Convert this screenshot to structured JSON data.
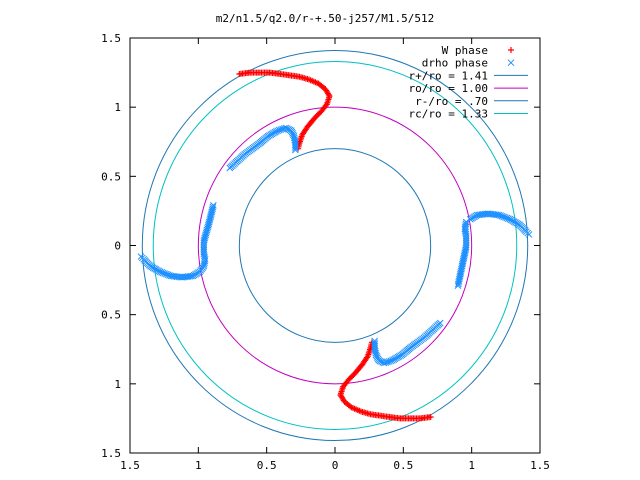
{
  "title": "m2/n1.5/q2.0/r-+.50-j257/M1.5/512",
  "chart_data": {
    "type": "scatter",
    "xlim": [
      -1.5,
      1.5
    ],
    "ylim": [
      -1.5,
      1.5
    ],
    "x_tick_values": [
      -1.5,
      -1,
      -0.5,
      0,
      0.5,
      1,
      1.5
    ],
    "x_tick_labels": [
      "1.5",
      "1",
      "0.5",
      "0",
      "0.5",
      "1",
      "1.5"
    ],
    "y_tick_values": [
      1.5,
      1,
      0.5,
      0,
      -0.5,
      -1,
      -1.5
    ],
    "y_tick_labels": [
      "1.5",
      "1",
      "0.5",
      "0",
      "0.5",
      "1",
      "1.5"
    ],
    "legend_position": "top-right",
    "series": [
      {
        "name": "W phase",
        "marker": "plus",
        "color": "#ff0000",
        "points": [
          [
            -0.7,
            1.24
          ],
          [
            -0.62,
            1.25
          ],
          [
            -0.55,
            1.25
          ],
          [
            -0.48,
            1.25
          ],
          [
            -0.4,
            1.24
          ],
          [
            -0.33,
            1.23
          ],
          [
            -0.26,
            1.22
          ],
          [
            -0.19,
            1.2
          ],
          [
            -0.12,
            1.17
          ],
          [
            -0.07,
            1.13
          ],
          [
            -0.04,
            1.08
          ],
          [
            -0.06,
            1.02
          ],
          [
            -0.1,
            0.97
          ],
          [
            -0.15,
            0.92
          ],
          [
            -0.2,
            0.86
          ],
          [
            -0.24,
            0.8
          ],
          [
            -0.26,
            0.74
          ],
          [
            -0.27,
            0.7
          ],
          [
            0.7,
            -1.24
          ],
          [
            0.62,
            -1.25
          ],
          [
            0.55,
            -1.25
          ],
          [
            0.48,
            -1.25
          ],
          [
            0.4,
            -1.24
          ],
          [
            0.33,
            -1.23
          ],
          [
            0.26,
            -1.22
          ],
          [
            0.19,
            -1.2
          ],
          [
            0.12,
            -1.17
          ],
          [
            0.07,
            -1.13
          ],
          [
            0.04,
            -1.08
          ],
          [
            0.06,
            -1.02
          ],
          [
            0.1,
            -0.97
          ],
          [
            0.15,
            -0.92
          ],
          [
            0.2,
            -0.86
          ],
          [
            0.24,
            -0.8
          ],
          [
            0.26,
            -0.74
          ],
          [
            0.27,
            -0.7
          ]
        ]
      },
      {
        "name": "drho phase",
        "marker": "cross",
        "color": "#1e90ff",
        "points": [
          [
            -0.29,
            0.69
          ],
          [
            -0.29,
            0.74
          ],
          [
            -0.3,
            0.79
          ],
          [
            -0.32,
            0.83
          ],
          [
            -0.36,
            0.85
          ],
          [
            -0.42,
            0.83
          ],
          [
            -0.49,
            0.79
          ],
          [
            -0.55,
            0.74
          ],
          [
            -0.66,
            0.66
          ],
          [
            -0.77,
            0.56
          ],
          [
            -0.89,
            0.29
          ],
          [
            -0.92,
            0.17
          ],
          [
            -0.96,
            0.03
          ],
          [
            -0.96,
            -0.01
          ],
          [
            -0.96,
            -0.06
          ],
          [
            -0.95,
            -0.1
          ],
          [
            -0.96,
            -0.15
          ],
          [
            -0.99,
            -0.19
          ],
          [
            -1.04,
            -0.22
          ],
          [
            -1.12,
            -0.23
          ],
          [
            -1.2,
            -0.22
          ],
          [
            -1.28,
            -0.19
          ],
          [
            -1.35,
            -0.15
          ],
          [
            -1.4,
            -0.1
          ],
          [
            -1.42,
            -0.08
          ],
          [
            0.96,
            0.17
          ],
          [
            0.95,
            0.12
          ],
          [
            0.96,
            0.07
          ],
          [
            0.96,
            0.03
          ],
          [
            0.96,
            -0.01
          ],
          [
            0.94,
            -0.1
          ],
          [
            0.9,
            -0.29
          ],
          [
            0.77,
            -0.56
          ],
          [
            0.66,
            -0.66
          ],
          [
            0.55,
            -0.74
          ],
          [
            0.49,
            -0.79
          ],
          [
            0.42,
            -0.83
          ],
          [
            0.36,
            -0.85
          ],
          [
            0.32,
            -0.83
          ],
          [
            0.3,
            -0.79
          ],
          [
            0.29,
            -0.74
          ],
          [
            0.29,
            -0.69
          ],
          [
            0.99,
            0.19
          ],
          [
            1.04,
            0.22
          ],
          [
            1.12,
            0.23
          ],
          [
            1.2,
            0.22
          ],
          [
            1.28,
            0.19
          ],
          [
            1.35,
            0.15
          ],
          [
            1.4,
            0.1
          ],
          [
            1.42,
            0.08
          ]
        ]
      }
    ],
    "circles": [
      {
        "name": "r+/ro = 1.41",
        "radius": 1.41,
        "color": "#1f77b4"
      },
      {
        "name": "ro/ro = 1.00",
        "radius": 1.0,
        "color": "#c000c0"
      },
      {
        "name": "r-/ro = .70",
        "radius": 0.7,
        "color": "#1f77b4"
      },
      {
        "name": "rc/ro = 1.33",
        "radius": 1.33,
        "color": "#00c0c0"
      }
    ]
  }
}
